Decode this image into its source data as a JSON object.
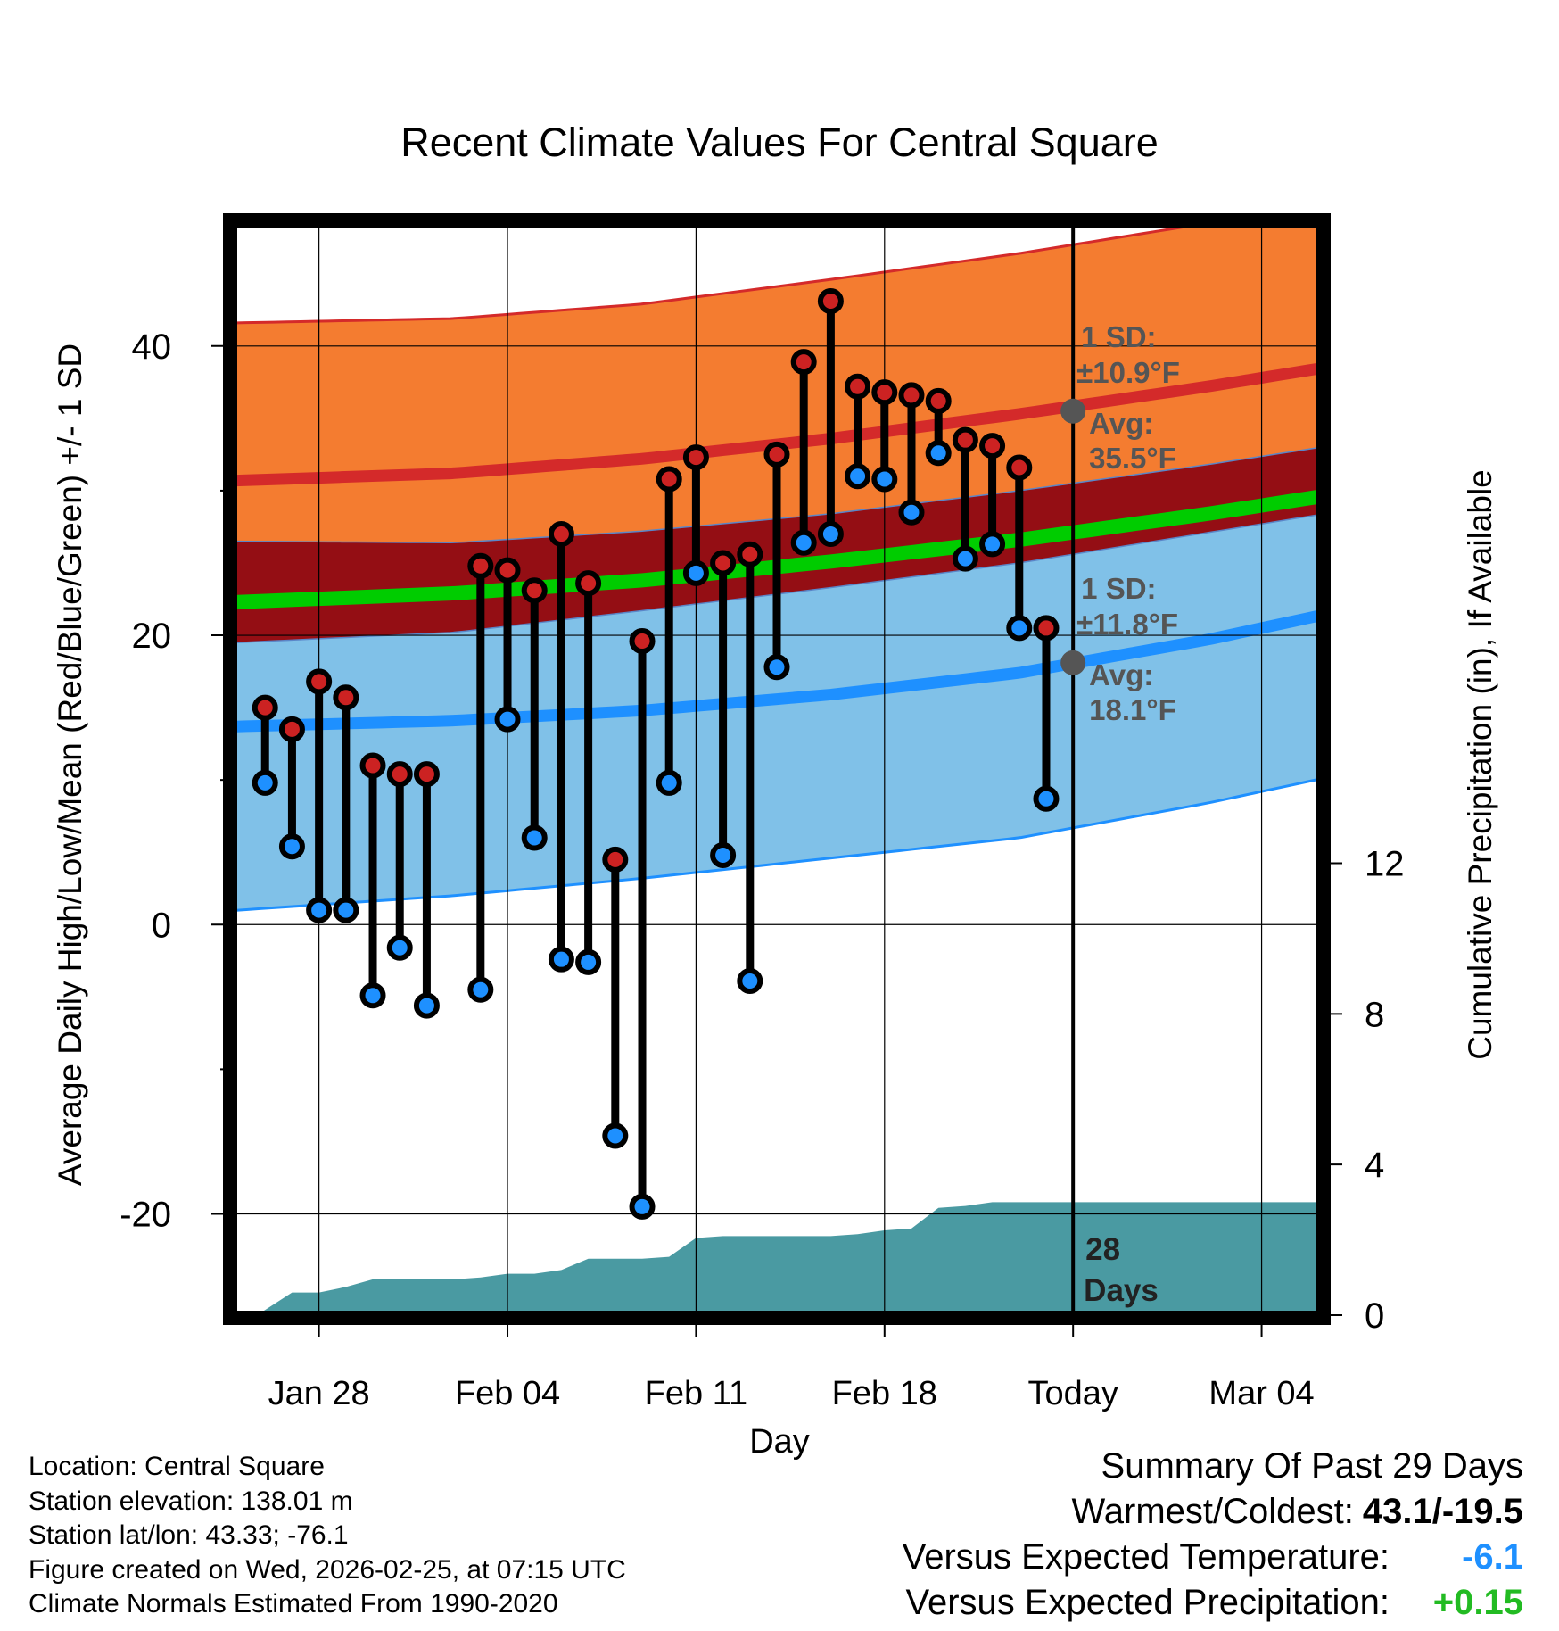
{
  "chart_data": {
    "type": "line",
    "title": "Recent Climate Values For Central Square",
    "xlabel": "Day",
    "ylabel_left": "Average Daily High/Low/Mean (Red/Blue/Green) +/- 1 SD",
    "ylabel_right": "Cumulative Precipitation (in), If Available",
    "y_left_range": [
      -27,
      48.5
    ],
    "y_left_ticks": [
      -20,
      0,
      20,
      40
    ],
    "y_right_range": [
      0,
      29
    ],
    "y_right_ticks": [
      0,
      4,
      8,
      12
    ],
    "x_range": [
      -3.2,
      37.2
    ],
    "x_ticks": [
      {
        "day": 0,
        "label": "Jan 28"
      },
      {
        "day": 7,
        "label": "Feb 04"
      },
      {
        "day": 14,
        "label": "Feb 11"
      },
      {
        "day": 21,
        "label": "Feb 18"
      },
      {
        "day": 28,
        "label": "Today"
      },
      {
        "day": 35,
        "label": "Mar 04"
      }
    ],
    "today_day": 28,
    "normals": {
      "days": [
        -3,
        5,
        12,
        19,
        26,
        33,
        40
      ],
      "high_mean": [
        30.7,
        31.2,
        32.2,
        33.6,
        35.3,
        37.2,
        39.3
      ],
      "high_upper": [
        41.6,
        41.9,
        42.9,
        44.6,
        46.4,
        48.5,
        50.8
      ],
      "low_mean": [
        13.7,
        14.1,
        14.8,
        15.9,
        17.4,
        19.7,
        22.5
      ],
      "low_lower": [
        1.0,
        2.0,
        3.2,
        4.6,
        6.0,
        8.4,
        11.2
      ],
      "mean": [
        22.3,
        22.9,
        23.8,
        25.1,
        26.6,
        28.4,
        30.4
      ],
      "mean_band_top": [
        26.5,
        26.4,
        27.2,
        28.4,
        30.0,
        31.8,
        33.8
      ],
      "mean_band_bottom": [
        19.5,
        20.2,
        21.7,
        23.3,
        25.0,
        27.1,
        29.2
      ]
    },
    "series": [
      {
        "name": "Daily High",
        "color": "#cc2222",
        "days": [
          -2,
          -1,
          0,
          1,
          2,
          3,
          4,
          6,
          7,
          8,
          9,
          10,
          11,
          12,
          13,
          14,
          15,
          16,
          17,
          18,
          19,
          20,
          21,
          22,
          23,
          24,
          25,
          26,
          27
        ],
        "values": [
          15.0,
          13.5,
          16.8,
          15.7,
          11.0,
          10.4,
          10.4,
          24.8,
          24.5,
          23.1,
          27.0,
          23.6,
          4.5,
          19.6,
          30.8,
          32.3,
          25.0,
          25.6,
          32.5,
          38.9,
          43.1,
          37.2,
          36.8,
          36.6,
          36.2,
          33.5,
          33.1,
          31.6,
          20.5
        ]
      },
      {
        "name": "Daily Low",
        "color": "#1e90ff",
        "days": [
          -2,
          -1,
          0,
          1,
          2,
          3,
          4,
          6,
          7,
          8,
          9,
          10,
          11,
          12,
          13,
          14,
          15,
          16,
          17,
          18,
          19,
          20,
          21,
          22,
          23,
          24,
          25,
          26,
          27
        ],
        "values": [
          9.8,
          5.4,
          1.0,
          1.0,
          -4.9,
          -1.6,
          -5.6,
          -4.5,
          14.2,
          6.0,
          -2.4,
          -2.6,
          -14.6,
          -19.5,
          9.8,
          24.3,
          4.8,
          -3.9,
          17.8,
          26.4,
          27.0,
          31.0,
          30.8,
          28.5,
          32.6,
          25.3,
          26.3,
          20.5,
          8.7
        ]
      },
      {
        "name": "Cumulative Precipitation",
        "color": "#4a9aa2",
        "days": [
          -2.3,
          -1,
          0,
          1,
          2,
          3,
          4,
          5,
          6,
          7,
          8,
          9,
          10,
          11,
          12,
          13,
          14,
          15,
          16,
          17,
          18,
          19,
          20,
          21,
          22,
          23,
          24,
          25,
          26,
          27,
          28,
          29,
          30,
          31,
          32,
          33,
          34,
          35,
          36,
          37.2
        ],
        "values": [
          0.0,
          0.6,
          0.6,
          0.75,
          0.95,
          0.95,
          0.95,
          0.95,
          1.0,
          1.1,
          1.1,
          1.2,
          1.5,
          1.5,
          1.5,
          1.55,
          2.05,
          2.1,
          2.1,
          2.1,
          2.1,
          2.1,
          2.15,
          2.25,
          2.3,
          2.85,
          2.9,
          3.0,
          3.0,
          3.0,
          3.0,
          3.0,
          3.0,
          3.0,
          3.0,
          3.0,
          3.0,
          3.0,
          3.0,
          3.0
        ]
      }
    ],
    "annotations": {
      "high": {
        "sd_label": "1 SD:",
        "sd_value": "±10.9°F",
        "avg_label": "Avg:",
        "avg_value": "35.5°F",
        "avg": 35.5
      },
      "low": {
        "sd_label": "1 SD:",
        "sd_value": "±11.8°F",
        "avg_label": "Avg:",
        "avg_value": "18.1°F",
        "avg": 18.1
      },
      "days_count": "28",
      "days_word": "Days"
    }
  },
  "station_info": {
    "location": "Location: Central Square",
    "elevation": "Station elevation: 138.01 m",
    "latlon": "Station lat/lon: 43.33; -76.1",
    "created": "Figure created on Wed, 2026-02-25, at 07:15 UTC",
    "normals": "Climate Normals Estimated From 1990-2020"
  },
  "summary": {
    "title": "Summary Of Past 29 Days",
    "warmest_label": "Warmest/Coldest:",
    "warmest_value": "43.1/-19.5",
    "temp_label": "Versus Expected Temperature:",
    "temp_value": "-6.1",
    "temp_color": "#1e90ff",
    "precip_label": "Versus Expected Precipitation:",
    "precip_value": "+0.15",
    "precip_color": "#22bb22"
  },
  "colors": {
    "high_band": "#f47c30",
    "high_line": "#d42a2a",
    "mean_band": "#940e14",
    "mean_line": "#00cc00",
    "low_band": "#80c1e8",
    "low_line": "#1e90ff",
    "precip": "#4a9aa2",
    "high_marker": "#cc2222",
    "low_marker": "#1e90ff",
    "annotation": "#555555"
  }
}
